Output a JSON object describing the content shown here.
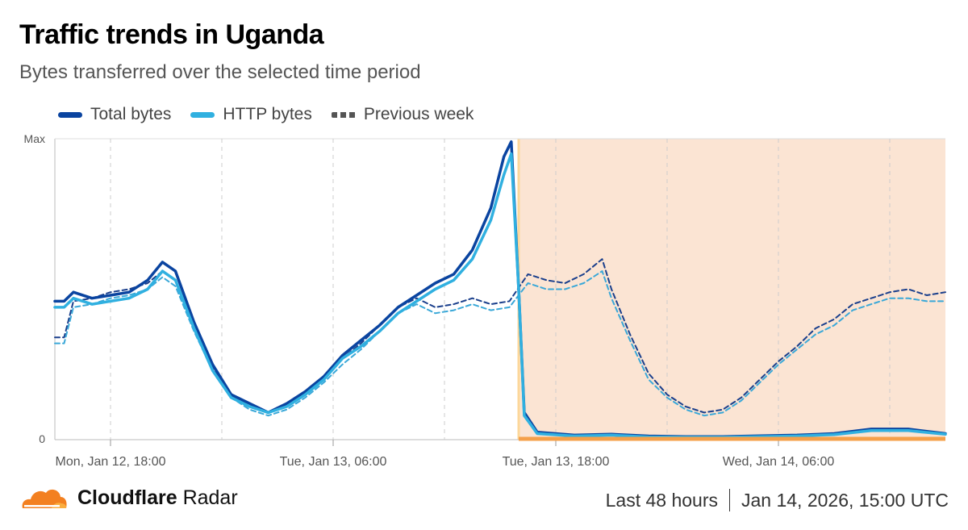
{
  "header": {
    "title": "Traffic trends in Uganda",
    "subtitle": "Bytes transferred over the selected time period"
  },
  "footer": {
    "brand_bold": "Cloudflare",
    "brand_rest": " Radar",
    "range": "Last 48 hours",
    "timestamp": "Jan 14, 2026, 15:00 UTC"
  },
  "colors": {
    "total": "#0a44a0",
    "http": "#30b0e0",
    "previous_total": "#1a3f8c",
    "previous_http": "#3aa8d8",
    "outage_fill": "#fbe4d3",
    "outage_line": "#f5a04a",
    "outage_edge": "#fcd79a",
    "grid": "#cccccc",
    "logo_orange": "#f38020",
    "logo_light": "#faad3f"
  },
  "chart_data": {
    "type": "line",
    "title": "Traffic trends in Uganda",
    "subtitle": "Bytes transferred over the selected time period",
    "x_unit": "hours since Mon, Jan 12, 15:00 UTC",
    "xlim": [
      0,
      48
    ],
    "ylim": [
      0,
      1
    ],
    "y_tick_labels": [
      "0",
      "Max"
    ],
    "x_ticks": [
      {
        "x": 3,
        "label": "Mon, Jan 12, 18:00"
      },
      {
        "x": 15,
        "label": "Tue, Jan 13, 06:00"
      },
      {
        "x": 27,
        "label": "Tue, Jan 13, 18:00"
      },
      {
        "x": 39,
        "label": "Wed, Jan 14, 06:00"
      }
    ],
    "minor_gridlines_x": [
      3,
      9,
      15,
      21,
      27,
      33,
      39,
      45
    ],
    "legend": [
      "Total bytes",
      "HTTP bytes",
      "Previous week"
    ],
    "annotations": [
      {
        "type": "shaded_region",
        "x_start": 25,
        "x_end": 48,
        "label": "outage"
      }
    ],
    "series": [
      {
        "name": "Total bytes",
        "style": "solid",
        "x": [
          0,
          0.5,
          1,
          2,
          3,
          4,
          5,
          5.8,
          6.5,
          7.5,
          8.5,
          9.5,
          10.5,
          11.5,
          12.5,
          13.5,
          14.5,
          15.5,
          16.5,
          17.5,
          18.5,
          19.5,
          20.5,
          21.5,
          22.5,
          23.5,
          24.2,
          24.6,
          25,
          25.3,
          26,
          28,
          30,
          32,
          34,
          36,
          38,
          40,
          42,
          44,
          46,
          48
        ],
        "values": [
          0.46,
          0.46,
          0.49,
          0.47,
          0.48,
          0.49,
          0.53,
          0.59,
          0.56,
          0.39,
          0.25,
          0.15,
          0.12,
          0.09,
          0.12,
          0.16,
          0.21,
          0.28,
          0.33,
          0.38,
          0.44,
          0.48,
          0.52,
          0.55,
          0.63,
          0.77,
          0.94,
          0.99,
          0.5,
          0.09,
          0.025,
          0.015,
          0.018,
          0.012,
          0.01,
          0.01,
          0.013,
          0.015,
          0.02,
          0.035,
          0.035,
          0.02
        ]
      },
      {
        "name": "HTTP bytes",
        "style": "solid",
        "x": [
          0,
          0.5,
          1,
          2,
          3,
          4,
          5,
          5.8,
          6.5,
          7.5,
          8.5,
          9.5,
          10.5,
          11.5,
          12.5,
          13.5,
          14.5,
          15.5,
          16.5,
          17.5,
          18.5,
          19.5,
          20.5,
          21.5,
          22.5,
          23.5,
          24.2,
          24.6,
          25,
          25.3,
          26,
          28,
          30,
          32,
          34,
          36,
          38,
          40,
          42,
          44,
          46,
          48
        ],
        "values": [
          0.44,
          0.44,
          0.47,
          0.45,
          0.46,
          0.47,
          0.5,
          0.56,
          0.53,
          0.37,
          0.23,
          0.14,
          0.11,
          0.09,
          0.11,
          0.15,
          0.2,
          0.27,
          0.31,
          0.36,
          0.42,
          0.46,
          0.5,
          0.53,
          0.6,
          0.73,
          0.88,
          0.95,
          0.5,
          0.08,
          0.02,
          0.012,
          0.015,
          0.009,
          0.008,
          0.008,
          0.01,
          0.012,
          0.017,
          0.03,
          0.03,
          0.018
        ]
      },
      {
        "name": "Previous week (Total bytes)",
        "style": "dashed",
        "x": [
          0,
          0.5,
          1,
          2,
          3,
          4,
          5,
          5.8,
          6.5,
          7.5,
          8.5,
          9.5,
          10.5,
          11.5,
          12.5,
          13.5,
          14.5,
          15.5,
          16.5,
          17.5,
          18.5,
          19.5,
          20.5,
          21.5,
          22.5,
          23.5,
          24.5,
          25.5,
          26.5,
          27.5,
          28.5,
          29.5,
          30,
          31,
          32,
          33,
          34,
          35,
          36,
          37,
          38,
          39,
          40,
          41,
          42,
          43,
          44,
          45,
          46,
          47,
          48
        ],
        "values": [
          0.34,
          0.34,
          0.46,
          0.47,
          0.49,
          0.5,
          0.52,
          0.56,
          0.53,
          0.38,
          0.24,
          0.15,
          0.11,
          0.09,
          0.11,
          0.15,
          0.2,
          0.27,
          0.32,
          0.38,
          0.44,
          0.47,
          0.44,
          0.45,
          0.47,
          0.45,
          0.46,
          0.55,
          0.53,
          0.52,
          0.55,
          0.6,
          0.5,
          0.35,
          0.22,
          0.15,
          0.11,
          0.09,
          0.1,
          0.14,
          0.2,
          0.26,
          0.31,
          0.37,
          0.4,
          0.45,
          0.47,
          0.49,
          0.5,
          0.48,
          0.49
        ]
      },
      {
        "name": "Previous week (HTTP bytes)",
        "style": "dashed",
        "x": [
          0,
          0.5,
          1,
          2,
          3,
          4,
          5,
          5.8,
          6.5,
          7.5,
          8.5,
          9.5,
          10.5,
          11.5,
          12.5,
          13.5,
          14.5,
          15.5,
          16.5,
          17.5,
          18.5,
          19.5,
          20.5,
          21.5,
          22.5,
          23.5,
          24.5,
          25.5,
          26.5,
          27.5,
          28.5,
          29.5,
          30,
          31,
          32,
          33,
          34,
          35,
          36,
          37,
          38,
          39,
          40,
          41,
          42,
          43,
          44,
          45,
          46,
          47,
          48
        ],
        "values": [
          0.32,
          0.32,
          0.44,
          0.45,
          0.47,
          0.48,
          0.5,
          0.54,
          0.51,
          0.36,
          0.23,
          0.14,
          0.1,
          0.08,
          0.1,
          0.14,
          0.19,
          0.25,
          0.3,
          0.36,
          0.42,
          0.45,
          0.42,
          0.43,
          0.45,
          0.43,
          0.44,
          0.52,
          0.5,
          0.5,
          0.52,
          0.56,
          0.47,
          0.33,
          0.2,
          0.14,
          0.1,
          0.08,
          0.09,
          0.13,
          0.19,
          0.25,
          0.3,
          0.35,
          0.38,
          0.43,
          0.45,
          0.47,
          0.47,
          0.46,
          0.46
        ]
      }
    ]
  }
}
